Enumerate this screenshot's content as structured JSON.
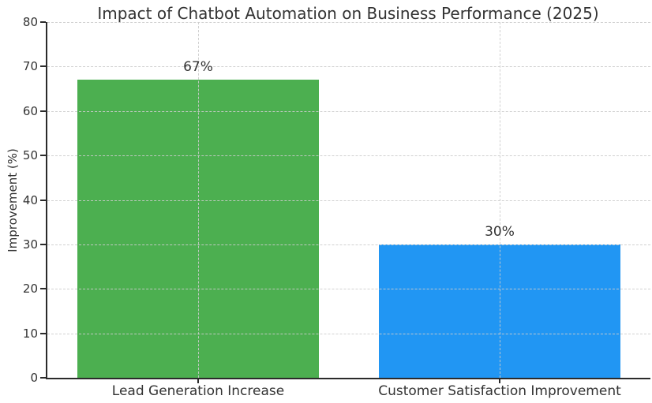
{
  "chart_data": {
    "type": "bar",
    "title": "Impact of Chatbot Automation on Business Performance (2025)",
    "xlabel": "",
    "ylabel": "Improvement (%)",
    "categories": [
      "Lead Generation Increase",
      "Customer Satisfaction Improvement"
    ],
    "values": [
      67,
      30
    ],
    "value_labels": [
      "67%",
      "30%"
    ],
    "bar_colors": [
      "#4caf50",
      "#2196f3"
    ],
    "ylim": [
      0,
      80
    ],
    "yticks": [
      0,
      10,
      20,
      30,
      40,
      50,
      60,
      70,
      80
    ],
    "grid": "dashed horizontal and vertical at category centers, drawn over bars",
    "grid_color": "#cccccc",
    "axis_color": "#2b2b2b",
    "text_color": "#333333",
    "legend": "none",
    "bar_width_fraction": 0.8
  }
}
